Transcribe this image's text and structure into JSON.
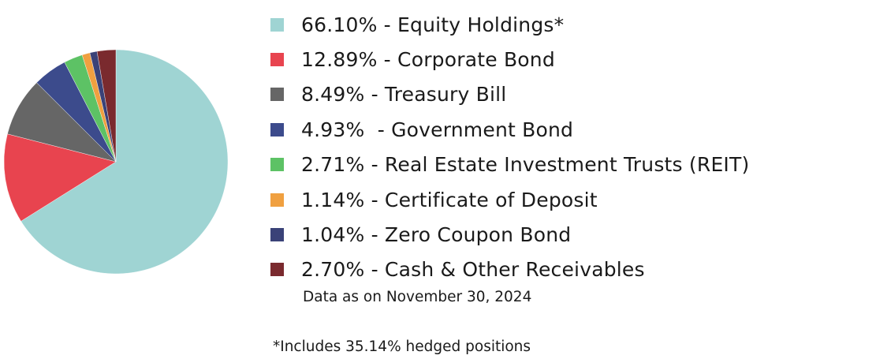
{
  "chart_data": {
    "type": "pie",
    "start_angle_deg": 0,
    "direction": "clockwise",
    "slices": [
      {
        "label": "66.10% - Equity Holdings*",
        "value": 66.1,
        "color": "#9fd4d3"
      },
      {
        "label": "12.89% - Corporate Bond",
        "value": 12.89,
        "color": "#e8444f"
      },
      {
        "label": "8.49% - Treasury Bill",
        "value": 8.49,
        "color": "#666666"
      },
      {
        "label": "4.93%  - Government Bond",
        "value": 4.93,
        "color": "#3c4b8c"
      },
      {
        "label": "2.71% - Real Estate Investment Trusts (REIT)",
        "value": 2.71,
        "color": "#5dc265"
      },
      {
        "label": "1.14% - Certificate of Deposit",
        "value": 1.14,
        "color": "#f0a040"
      },
      {
        "label": "1.04% - Zero Coupon Bond",
        "value": 1.04,
        "color": "#3a4278"
      },
      {
        "label": "2.70% - Cash & Other Receivables",
        "value": 2.7,
        "color": "#7a2a2e"
      }
    ],
    "as_of": "Data as on November 30, 2024",
    "footnote": "*Includes 35.14% hedged positions"
  }
}
